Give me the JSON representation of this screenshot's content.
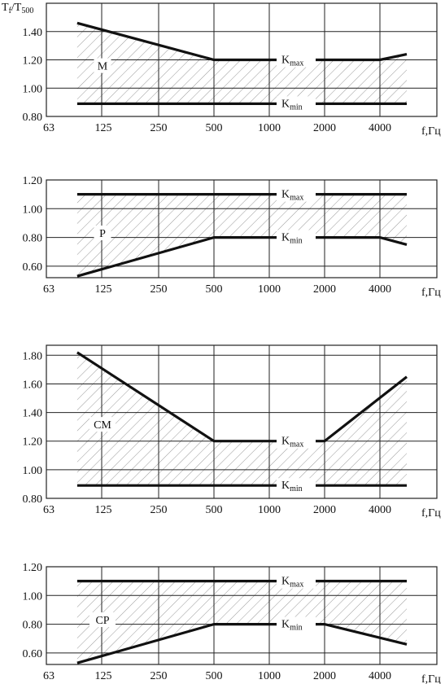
{
  "ylabel": {
    "main": "T",
    "sub1": "f",
    "slash": "/T",
    "sub2": "500"
  },
  "xlabel": "f,Гц",
  "colors": {
    "line": "#111111",
    "grid": "#222222",
    "hatch": "#9a9a9a"
  },
  "chart_data": [
    {
      "type": "line",
      "panel_label": "M",
      "x_ticks": [
        "63",
        "125",
        "250",
        "500",
        "1000",
        "2000",
        "4000"
      ],
      "y_ticks": [
        "0.80",
        "1.00",
        "1.20",
        "1.40"
      ],
      "ylim": [
        0.8,
        1.6
      ],
      "grid": true,
      "hatched_band": true,
      "series": [
        {
          "name": "Kmax",
          "x": [
            90,
            500,
            4000,
            5600
          ],
          "y": [
            1.46,
            1.2,
            1.2,
            1.24
          ]
        },
        {
          "name": "Kmin",
          "x": [
            90,
            5600
          ],
          "y": [
            0.89,
            0.89
          ]
        }
      ],
      "labels": {
        "kmax_main": "K",
        "kmax_sub": "max",
        "kmin_main": "K",
        "kmin_sub": "min"
      }
    },
    {
      "type": "line",
      "panel_label": "P",
      "x_ticks": [
        "63",
        "125",
        "250",
        "500",
        "1000",
        "2000",
        "4000"
      ],
      "y_ticks": [
        "0.60",
        "0.80",
        "1.00",
        "1.20"
      ],
      "ylim": [
        0.52,
        1.2
      ],
      "grid": true,
      "hatched_band": true,
      "series": [
        {
          "name": "Kmax",
          "x": [
            90,
            5600
          ],
          "y": [
            1.1,
            1.1
          ]
        },
        {
          "name": "Kmin",
          "x": [
            90,
            500,
            4000,
            5600
          ],
          "y": [
            0.53,
            0.8,
            0.8,
            0.75
          ]
        }
      ],
      "labels": {
        "kmax_main": "K",
        "kmax_sub": "max",
        "kmin_main": "K",
        "kmin_sub": "min"
      }
    },
    {
      "type": "line",
      "panel_label": "CM",
      "x_ticks": [
        "63",
        "125",
        "250",
        "500",
        "1000",
        "2000",
        "4000"
      ],
      "y_ticks": [
        "0.80",
        "1.00",
        "1.20",
        "1.40",
        "1.60",
        "1.80"
      ],
      "ylim": [
        0.8,
        1.87
      ],
      "grid": true,
      "hatched_band": true,
      "series": [
        {
          "name": "Kmax",
          "x": [
            90,
            500,
            2000,
            5600
          ],
          "y": [
            1.82,
            1.2,
            1.2,
            1.65
          ]
        },
        {
          "name": "Kmin",
          "x": [
            90,
            5600
          ],
          "y": [
            0.89,
            0.89
          ]
        }
      ],
      "labels": {
        "kmax_main": "K",
        "kmax_sub": "max",
        "kmin_main": "K",
        "kmin_sub": "min"
      }
    },
    {
      "type": "line",
      "panel_label": "CP",
      "x_ticks": [
        "63",
        "125",
        "250",
        "500",
        "1000",
        "2000",
        "4000"
      ],
      "y_ticks": [
        "0.60",
        "0.80",
        "1.00",
        "1.20"
      ],
      "ylim": [
        0.52,
        1.2
      ],
      "grid": true,
      "hatched_band": true,
      "series": [
        {
          "name": "Kmax",
          "x": [
            90,
            5600
          ],
          "y": [
            1.1,
            1.1
          ]
        },
        {
          "name": "Kmin",
          "x": [
            90,
            500,
            2000,
            5600
          ],
          "y": [
            0.53,
            0.8,
            0.8,
            0.66
          ]
        }
      ],
      "labels": {
        "kmax_main": "K",
        "kmax_sub": "max",
        "kmin_main": "K",
        "kmin_sub": "min"
      }
    }
  ]
}
